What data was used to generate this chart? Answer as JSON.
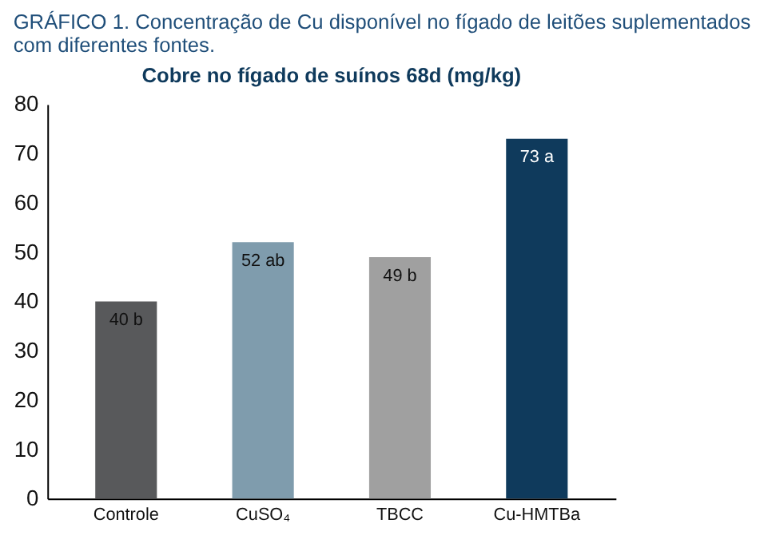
{
  "chart_data": {
    "type": "bar",
    "title": "GRÁFICO 1. Concentração de Cu disponível no fígado de leitões suplementados com diferentes fontes.",
    "subtitle": "Cobre no fígado de suínos 68d (mg/kg)",
    "categories": [
      "Controle",
      "CuSO₄",
      "TBCC",
      "Cu-HMTBa"
    ],
    "values": [
      40,
      52,
      49,
      73
    ],
    "value_labels": [
      "40 b",
      "52 ab",
      "49 b",
      "73 a"
    ],
    "colors": [
      "#58595b",
      "#7f9cad",
      "#a0a0a0",
      "#0f3a5c"
    ],
    "ylim": [
      0,
      80
    ],
    "yticks": [
      0,
      10,
      20,
      30,
      40,
      50,
      60,
      70,
      80
    ],
    "grid": false
  }
}
